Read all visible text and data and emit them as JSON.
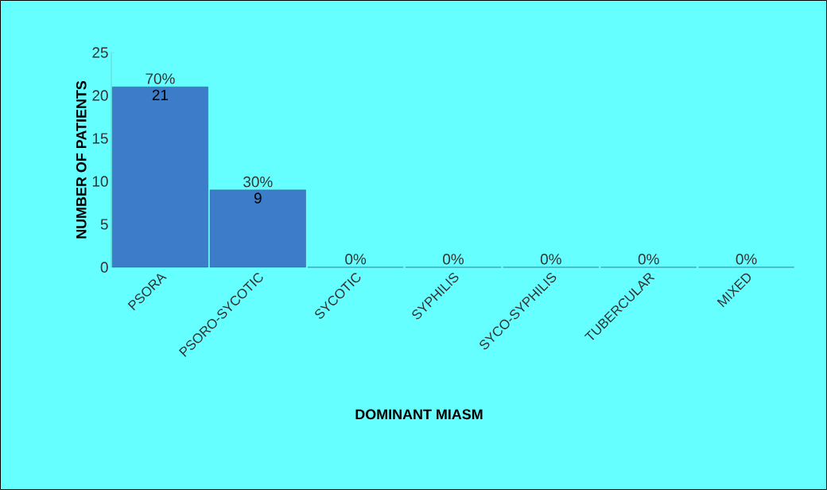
{
  "chart_data": {
    "type": "bar",
    "xlabel": "DOMINANT MIASM",
    "ylabel": "NUMBER OF PATIENTS",
    "categories": [
      "PSORA",
      "PSORO-SYCOTIC",
      "SYCOTIC",
      "SYPHILIS",
      "SYCO-SYPHILIS",
      "TUBERCULAR",
      "MIXED"
    ],
    "values": [
      21,
      9,
      0,
      0,
      0,
      0,
      0
    ],
    "value_labels": [
      "21",
      "9",
      null,
      null,
      null,
      null,
      null
    ],
    "color": "#3d7cc9",
    "ylim": [
      0,
      25
    ],
    "yticks": [
      0,
      5,
      10,
      15,
      20,
      25
    ],
    "annotations": [
      {
        "text": "70%",
        "x": "PSORA",
        "y": 21
      },
      {
        "text": "30%",
        "x": "PSORO-SYCOTIC",
        "y": 9
      },
      {
        "text": "0%",
        "x": "SYCOTIC",
        "y": 0
      },
      {
        "text": "0%",
        "x": "SYPHILIS",
        "y": 0
      },
      {
        "text": "0%",
        "x": "SYCO-SYPHILIS",
        "y": 0
      },
      {
        "text": "0%",
        "x": "TUBERCULAR",
        "y": 0
      },
      {
        "text": "0%",
        "x": "MIXED",
        "y": 0
      }
    ]
  }
}
